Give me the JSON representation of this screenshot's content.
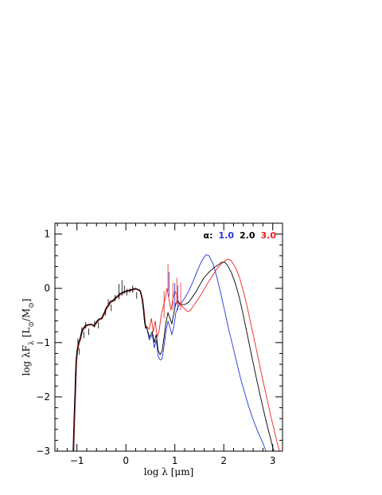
{
  "chart_data": {
    "type": "line",
    "xlabel": "log λ [μm]",
    "ylabel": "log λF",
    "ylabel_sub": "λ",
    "ylabel_unit": "[L",
    "ylabel_unit_sub1": "⊙",
    "ylabel_unit_mid": "/M",
    "ylabel_unit_sub2": "⊙",
    "ylabel_unit_end": "]",
    "xlim": [
      -1.45,
      3.2
    ],
    "ylim": [
      -3,
      1.2
    ],
    "x_ticks": [
      -1,
      0,
      1,
      2,
      3
    ],
    "x_tick_labels": [
      "−1",
      "0",
      "1",
      "2",
      "3"
    ],
    "y_ticks": [
      1,
      0,
      -1,
      -2,
      -3
    ],
    "y_tick_labels": [
      "1",
      "0",
      "−1",
      "−2",
      "−3"
    ],
    "legend": {
      "prefix": "α:",
      "placement": "top-right",
      "entries": [
        {
          "label": "1.0",
          "color": "#2233dd"
        },
        {
          "label": "2.0",
          "color": "#000000"
        },
        {
          "label": "3.0",
          "color": "#ee2222"
        }
      ]
    },
    "stellar": [
      [
        -1.08,
        -3.0
      ],
      [
        -1.06,
        -2.4
      ],
      [
        -1.04,
        -1.9
      ],
      [
        -1.03,
        -1.6
      ],
      [
        -1.02,
        -1.35
      ],
      [
        -1.0,
        -1.15
      ],
      [
        -0.98,
        -1.05
      ],
      [
        -0.96,
        -0.98
      ],
      [
        -0.94,
        -0.93
      ],
      [
        -0.92,
        -0.85
      ],
      [
        -0.9,
        -0.78
      ],
      [
        -0.86,
        -0.72
      ],
      [
        -0.82,
        -0.68
      ],
      [
        -0.78,
        -0.67
      ],
      [
        -0.74,
        -0.66
      ],
      [
        -0.7,
        -0.66
      ],
      [
        -0.66,
        -0.69
      ],
      [
        -0.62,
        -0.64
      ],
      [
        -0.58,
        -0.59
      ],
      [
        -0.54,
        -0.56
      ],
      [
        -0.5,
        -0.55
      ],
      [
        -0.44,
        -0.44
      ],
      [
        -0.4,
        -0.35
      ],
      [
        -0.36,
        -0.31
      ],
      [
        -0.32,
        -0.24
      ],
      [
        -0.28,
        -0.23
      ],
      [
        -0.24,
        -0.2
      ],
      [
        -0.2,
        -0.16
      ],
      [
        -0.16,
        -0.13
      ],
      [
        -0.12,
        -0.1
      ],
      [
        -0.08,
        -0.08
      ],
      [
        -0.04,
        -0.06
      ],
      [
        0.0,
        -0.05
      ],
      [
        0.04,
        -0.04
      ],
      [
        0.08,
        -0.03
      ],
      [
        0.12,
        -0.02
      ],
      [
        0.16,
        -0.01
      ],
      [
        0.2,
        0.0
      ],
      [
        0.24,
        -0.02
      ],
      [
        0.28,
        -0.03
      ],
      [
        0.3,
        -0.08
      ],
      [
        0.33,
        -0.2
      ],
      [
        0.36,
        -0.42
      ],
      [
        0.38,
        -0.62
      ],
      [
        0.4,
        -0.72
      ],
      [
        0.42,
        -0.7
      ]
    ],
    "stellar_spikes": [
      [
        -1.02,
        -1.5
      ],
      [
        -0.98,
        -0.92
      ],
      [
        -0.95,
        -1.1
      ],
      [
        -0.9,
        -0.72
      ],
      [
        -0.86,
        -0.8
      ],
      [
        -0.82,
        -0.62
      ],
      [
        -0.76,
        -0.74
      ],
      [
        -0.64,
        -0.6
      ],
      [
        -0.56,
        -0.62
      ],
      [
        -0.42,
        -0.38
      ],
      [
        -0.36,
        -0.2
      ],
      [
        -0.3,
        -0.3
      ],
      [
        -0.22,
        -0.12
      ],
      [
        -0.14,
        -0.07
      ],
      [
        0.02,
        -0.01
      ],
      [
        0.14,
        0.04
      ],
      [
        0.22,
        -0.07
      ]
    ],
    "emission_lines": [
      [
        -0.14,
        -0.2,
        0.08
      ],
      [
        -0.08,
        -0.14,
        0.15
      ],
      [
        -0.03,
        -0.1,
        0.05
      ],
      [
        0.08,
        -0.08,
        0.0
      ],
      [
        0.14,
        -0.06,
        0.05
      ]
    ],
    "series": [
      {
        "name": "1.0",
        "color": "#2233dd",
        "points": [
          [
            0.42,
            -0.7
          ],
          [
            0.48,
            -0.95
          ],
          [
            0.54,
            -0.85
          ],
          [
            0.58,
            -1.1
          ],
          [
            0.62,
            -0.95
          ],
          [
            0.66,
            -1.25
          ],
          [
            0.7,
            -1.32
          ],
          [
            0.74,
            -1.3
          ],
          [
            0.78,
            -1.05
          ],
          [
            0.82,
            -0.78
          ],
          [
            0.86,
            -0.6
          ],
          [
            0.9,
            -0.72
          ],
          [
            0.94,
            -0.85
          ],
          [
            0.98,
            -0.7
          ],
          [
            1.02,
            -0.45
          ],
          [
            1.06,
            -0.35
          ],
          [
            1.1,
            -0.3
          ],
          [
            1.15,
            -0.25
          ],
          [
            1.2,
            -0.18
          ],
          [
            1.28,
            -0.06
          ],
          [
            1.36,
            0.1
          ],
          [
            1.44,
            0.28
          ],
          [
            1.52,
            0.45
          ],
          [
            1.58,
            0.55
          ],
          [
            1.64,
            0.62
          ],
          [
            1.7,
            0.6
          ],
          [
            1.78,
            0.45
          ],
          [
            1.86,
            0.2
          ],
          [
            1.94,
            -0.1
          ],
          [
            2.02,
            -0.42
          ],
          [
            2.1,
            -0.75
          ],
          [
            2.18,
            -1.05
          ],
          [
            2.26,
            -1.35
          ],
          [
            2.34,
            -1.65
          ],
          [
            2.42,
            -1.9
          ],
          [
            2.5,
            -2.15
          ],
          [
            2.6,
            -2.42
          ],
          [
            2.7,
            -2.65
          ],
          [
            2.8,
            -2.85
          ],
          [
            2.86,
            -3.0
          ]
        ]
      },
      {
        "name": "2.0",
        "color": "#000000",
        "points": [
          [
            0.42,
            -0.7
          ],
          [
            0.48,
            -0.9
          ],
          [
            0.54,
            -0.8
          ],
          [
            0.58,
            -1.0
          ],
          [
            0.62,
            -0.85
          ],
          [
            0.66,
            -1.15
          ],
          [
            0.7,
            -1.22
          ],
          [
            0.74,
            -1.15
          ],
          [
            0.78,
            -0.9
          ],
          [
            0.82,
            -0.62
          ],
          [
            0.86,
            -0.45
          ],
          [
            0.9,
            -0.55
          ],
          [
            0.94,
            -0.65
          ],
          [
            0.98,
            -0.45
          ],
          [
            1.02,
            -0.28
          ],
          [
            1.06,
            -0.22
          ],
          [
            1.1,
            -0.28
          ],
          [
            1.15,
            -0.3
          ],
          [
            1.2,
            -0.3
          ],
          [
            1.28,
            -0.26
          ],
          [
            1.36,
            -0.16
          ],
          [
            1.44,
            -0.05
          ],
          [
            1.52,
            0.08
          ],
          [
            1.6,
            0.2
          ],
          [
            1.7,
            0.3
          ],
          [
            1.8,
            0.38
          ],
          [
            1.9,
            0.44
          ],
          [
            1.96,
            0.48
          ],
          [
            2.02,
            0.48
          ],
          [
            2.08,
            0.42
          ],
          [
            2.16,
            0.28
          ],
          [
            2.24,
            0.08
          ],
          [
            2.32,
            -0.18
          ],
          [
            2.4,
            -0.5
          ],
          [
            2.48,
            -0.85
          ],
          [
            2.56,
            -1.2
          ],
          [
            2.64,
            -1.55
          ],
          [
            2.72,
            -1.88
          ],
          [
            2.8,
            -2.2
          ],
          [
            2.88,
            -2.5
          ],
          [
            2.96,
            -2.78
          ],
          [
            3.02,
            -3.0
          ]
        ]
      },
      {
        "name": "3.0",
        "color": "#ee2222",
        "points": [
          [
            0.42,
            -0.7
          ],
          [
            0.48,
            -0.75
          ],
          [
            0.52,
            -0.55
          ],
          [
            0.56,
            -0.8
          ],
          [
            0.6,
            -0.6
          ],
          [
            0.64,
            -0.9
          ],
          [
            0.68,
            -0.78
          ],
          [
            0.72,
            -0.5
          ],
          [
            0.76,
            -0.35
          ],
          [
            0.8,
            -0.2
          ],
          [
            0.84,
            0.0
          ],
          [
            0.88,
            -0.2
          ],
          [
            0.92,
            -0.4
          ],
          [
            0.96,
            -0.2
          ],
          [
            1.0,
            -0.05
          ],
          [
            1.04,
            -0.12
          ],
          [
            1.08,
            -0.28
          ],
          [
            1.14,
            -0.32
          ],
          [
            1.2,
            -0.38
          ],
          [
            1.26,
            -0.43
          ],
          [
            1.32,
            -0.4
          ],
          [
            1.38,
            -0.32
          ],
          [
            1.46,
            -0.22
          ],
          [
            1.56,
            -0.08
          ],
          [
            1.66,
            0.08
          ],
          [
            1.76,
            0.22
          ],
          [
            1.86,
            0.36
          ],
          [
            1.96,
            0.46
          ],
          [
            2.04,
            0.52
          ],
          [
            2.1,
            0.54
          ],
          [
            2.16,
            0.5
          ],
          [
            2.24,
            0.38
          ],
          [
            2.32,
            0.2
          ],
          [
            2.4,
            -0.05
          ],
          [
            2.48,
            -0.35
          ],
          [
            2.56,
            -0.68
          ],
          [
            2.64,
            -1.02
          ],
          [
            2.72,
            -1.36
          ],
          [
            2.8,
            -1.7
          ],
          [
            2.88,
            -2.02
          ],
          [
            2.96,
            -2.35
          ],
          [
            3.04,
            -2.65
          ],
          [
            3.1,
            -2.88
          ],
          [
            3.14,
            -3.0
          ]
        ]
      }
    ],
    "red_spikes": [
      [
        0.78,
        -0.05
      ],
      [
        0.86,
        0.45
      ],
      [
        0.96,
        0.1
      ],
      [
        1.04,
        0.2
      ],
      [
        1.12,
        0.1
      ]
    ],
    "blue_spikes": [
      [
        0.88,
        0.3
      ],
      [
        1.0,
        0.1
      ],
      [
        1.06,
        0.05
      ]
    ]
  }
}
